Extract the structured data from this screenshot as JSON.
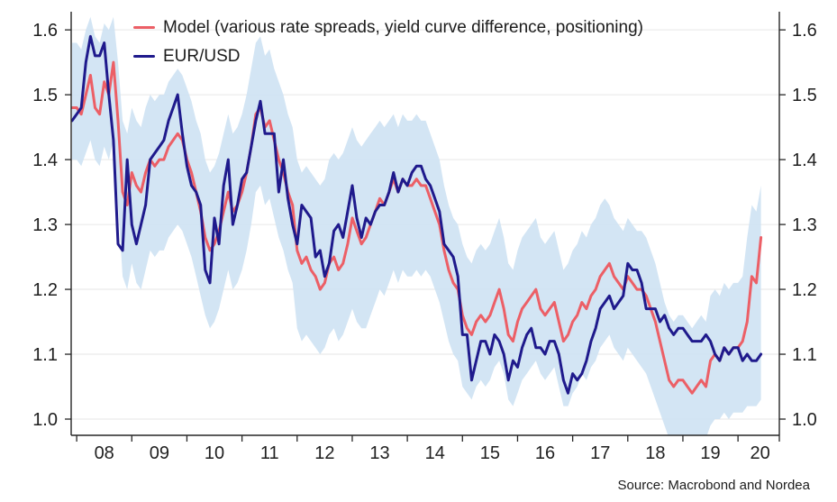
{
  "page": {
    "background": "#ffffff"
  },
  "legend": {
    "model_label": "Model (various rate spreads, yield curve difference, positioning)",
    "eurusd_label": "EUR/USD"
  },
  "source_note": "Source: Macrobond and Nordea",
  "colors": {
    "model_line": "#ec5f66",
    "eurusd_line": "#1f1a8c",
    "band": "#cfe3f3",
    "grid": "#e6e6e6",
    "axis": "#262626",
    "text": "#1f1f1f"
  },
  "chart_data": {
    "type": "line",
    "title": "",
    "x_unit": "year, monthly samples (decimal years)",
    "x_range": [
      2007.9,
      2020.75
    ],
    "x": [
      2007.917,
      2008.0,
      2008.083,
      2008.167,
      2008.25,
      2008.333,
      2008.417,
      2008.5,
      2008.583,
      2008.667,
      2008.75,
      2008.833,
      2008.917,
      2009.0,
      2009.083,
      2009.167,
      2009.25,
      2009.333,
      2009.417,
      2009.5,
      2009.583,
      2009.667,
      2009.75,
      2009.833,
      2009.917,
      2010.0,
      2010.083,
      2010.167,
      2010.25,
      2010.333,
      2010.417,
      2010.5,
      2010.583,
      2010.667,
      2010.75,
      2010.833,
      2010.917,
      2011.0,
      2011.083,
      2011.167,
      2011.25,
      2011.333,
      2011.417,
      2011.5,
      2011.583,
      2011.667,
      2011.75,
      2011.833,
      2011.917,
      2012.0,
      2012.083,
      2012.167,
      2012.25,
      2012.333,
      2012.417,
      2012.5,
      2012.583,
      2012.667,
      2012.75,
      2012.833,
      2012.917,
      2013.0,
      2013.083,
      2013.167,
      2013.25,
      2013.333,
      2013.417,
      2013.5,
      2013.583,
      2013.667,
      2013.75,
      2013.833,
      2013.917,
      2014.0,
      2014.083,
      2014.167,
      2014.25,
      2014.333,
      2014.417,
      2014.5,
      2014.583,
      2014.667,
      2014.75,
      2014.833,
      2014.917,
      2015.0,
      2015.083,
      2015.167,
      2015.25,
      2015.333,
      2015.417,
      2015.5,
      2015.583,
      2015.667,
      2015.75,
      2015.833,
      2015.917,
      2016.0,
      2016.083,
      2016.167,
      2016.25,
      2016.333,
      2016.417,
      2016.5,
      2016.583,
      2016.667,
      2016.75,
      2016.833,
      2016.917,
      2017.0,
      2017.083,
      2017.167,
      2017.25,
      2017.333,
      2017.417,
      2017.5,
      2017.583,
      2017.667,
      2017.75,
      2017.833,
      2017.917,
      2018.0,
      2018.083,
      2018.167,
      2018.25,
      2018.333,
      2018.417,
      2018.5,
      2018.583,
      2018.667,
      2018.75,
      2018.833,
      2018.917,
      2019.0,
      2019.083,
      2019.167,
      2019.25,
      2019.333,
      2019.417,
      2019.5,
      2019.583,
      2019.667,
      2019.75,
      2019.833,
      2019.917,
      2020.0,
      2020.083,
      2020.167,
      2020.25,
      2020.333,
      2020.417
    ],
    "series": [
      {
        "name": "Model (various rate spreads, yield curve difference, positioning)",
        "color": "#ec5f66",
        "values": [
          1.48,
          1.48,
          1.47,
          1.5,
          1.53,
          1.48,
          1.47,
          1.52,
          1.5,
          1.55,
          1.46,
          1.35,
          1.33,
          1.38,
          1.36,
          1.35,
          1.38,
          1.4,
          1.39,
          1.4,
          1.4,
          1.42,
          1.43,
          1.44,
          1.43,
          1.4,
          1.38,
          1.35,
          1.32,
          1.28,
          1.26,
          1.27,
          1.29,
          1.32,
          1.35,
          1.32,
          1.33,
          1.35,
          1.38,
          1.42,
          1.47,
          1.48,
          1.45,
          1.46,
          1.43,
          1.4,
          1.38,
          1.35,
          1.33,
          1.26,
          1.24,
          1.25,
          1.23,
          1.22,
          1.2,
          1.21,
          1.24,
          1.25,
          1.23,
          1.24,
          1.27,
          1.31,
          1.29,
          1.27,
          1.28,
          1.3,
          1.32,
          1.34,
          1.33,
          1.35,
          1.37,
          1.35,
          1.37,
          1.36,
          1.36,
          1.37,
          1.36,
          1.36,
          1.34,
          1.32,
          1.3,
          1.26,
          1.23,
          1.21,
          1.2,
          1.16,
          1.14,
          1.13,
          1.15,
          1.16,
          1.15,
          1.16,
          1.18,
          1.2,
          1.17,
          1.13,
          1.12,
          1.15,
          1.17,
          1.18,
          1.19,
          1.2,
          1.17,
          1.16,
          1.17,
          1.18,
          1.15,
          1.12,
          1.13,
          1.15,
          1.16,
          1.18,
          1.17,
          1.19,
          1.2,
          1.22,
          1.23,
          1.24,
          1.22,
          1.21,
          1.2,
          1.22,
          1.21,
          1.2,
          1.2,
          1.19,
          1.17,
          1.15,
          1.12,
          1.09,
          1.06,
          1.05,
          1.06,
          1.06,
          1.05,
          1.04,
          1.05,
          1.06,
          1.05,
          1.09,
          1.1,
          1.09,
          1.11,
          1.1,
          1.11,
          1.11,
          1.12,
          1.15,
          1.22,
          1.21,
          1.28
        ]
      },
      {
        "name": "EUR/USD",
        "color": "#1f1a8c",
        "values": [
          1.46,
          1.47,
          1.48,
          1.55,
          1.59,
          1.56,
          1.56,
          1.58,
          1.5,
          1.43,
          1.27,
          1.26,
          1.4,
          1.3,
          1.27,
          1.3,
          1.33,
          1.4,
          1.41,
          1.42,
          1.43,
          1.46,
          1.48,
          1.5,
          1.44,
          1.39,
          1.36,
          1.35,
          1.33,
          1.23,
          1.21,
          1.31,
          1.27,
          1.36,
          1.4,
          1.3,
          1.33,
          1.37,
          1.38,
          1.42,
          1.46,
          1.49,
          1.44,
          1.44,
          1.44,
          1.35,
          1.4,
          1.34,
          1.3,
          1.27,
          1.33,
          1.32,
          1.31,
          1.25,
          1.26,
          1.22,
          1.24,
          1.29,
          1.3,
          1.28,
          1.32,
          1.36,
          1.31,
          1.28,
          1.31,
          1.3,
          1.32,
          1.33,
          1.33,
          1.35,
          1.38,
          1.35,
          1.37,
          1.36,
          1.38,
          1.39,
          1.39,
          1.37,
          1.36,
          1.34,
          1.32,
          1.27,
          1.26,
          1.25,
          1.22,
          1.13,
          1.13,
          1.06,
          1.09,
          1.12,
          1.12,
          1.1,
          1.13,
          1.12,
          1.1,
          1.06,
          1.09,
          1.08,
          1.11,
          1.13,
          1.14,
          1.11,
          1.11,
          1.1,
          1.12,
          1.12,
          1.1,
          1.06,
          1.04,
          1.07,
          1.06,
          1.07,
          1.09,
          1.12,
          1.14,
          1.17,
          1.18,
          1.19,
          1.17,
          1.18,
          1.19,
          1.24,
          1.23,
          1.23,
          1.21,
          1.17,
          1.17,
          1.17,
          1.15,
          1.16,
          1.14,
          1.13,
          1.14,
          1.14,
          1.13,
          1.12,
          1.12,
          1.12,
          1.13,
          1.12,
          1.1,
          1.09,
          1.11,
          1.1,
          1.11,
          1.11,
          1.09,
          1.1,
          1.09,
          1.09,
          1.1
        ]
      }
    ],
    "band": {
      "name": "model uncertainty band",
      "color": "#cfe3f3",
      "upper": [
        1.58,
        1.58,
        1.57,
        1.6,
        1.62,
        1.59,
        1.58,
        1.61,
        1.6,
        1.62,
        1.55,
        1.46,
        1.44,
        1.48,
        1.46,
        1.45,
        1.48,
        1.5,
        1.49,
        1.5,
        1.5,
        1.52,
        1.53,
        1.54,
        1.53,
        1.51,
        1.49,
        1.46,
        1.44,
        1.4,
        1.38,
        1.39,
        1.41,
        1.44,
        1.47,
        1.44,
        1.45,
        1.47,
        1.5,
        1.54,
        1.58,
        1.59,
        1.56,
        1.57,
        1.54,
        1.52,
        1.5,
        1.47,
        1.45,
        1.4,
        1.38,
        1.39,
        1.38,
        1.37,
        1.36,
        1.37,
        1.4,
        1.41,
        1.4,
        1.41,
        1.43,
        1.45,
        1.43,
        1.42,
        1.43,
        1.44,
        1.45,
        1.46,
        1.45,
        1.46,
        1.47,
        1.45,
        1.47,
        1.46,
        1.46,
        1.47,
        1.46,
        1.46,
        1.44,
        1.42,
        1.4,
        1.36,
        1.33,
        1.31,
        1.3,
        1.27,
        1.25,
        1.24,
        1.26,
        1.27,
        1.26,
        1.27,
        1.29,
        1.31,
        1.28,
        1.24,
        1.23,
        1.26,
        1.28,
        1.29,
        1.3,
        1.31,
        1.28,
        1.27,
        1.28,
        1.29,
        1.26,
        1.23,
        1.24,
        1.26,
        1.27,
        1.29,
        1.28,
        1.3,
        1.31,
        1.33,
        1.34,
        1.33,
        1.31,
        1.3,
        1.29,
        1.31,
        1.3,
        1.29,
        1.29,
        1.28,
        1.26,
        1.24,
        1.21,
        1.18,
        1.16,
        1.15,
        1.16,
        1.16,
        1.15,
        1.14,
        1.15,
        1.16,
        1.15,
        1.19,
        1.2,
        1.19,
        1.21,
        1.2,
        1.21,
        1.21,
        1.22,
        1.28,
        1.33,
        1.32,
        1.36
      ],
      "lower": [
        1.4,
        1.4,
        1.39,
        1.41,
        1.43,
        1.4,
        1.39,
        1.42,
        1.4,
        1.43,
        1.33,
        1.22,
        1.2,
        1.24,
        1.21,
        1.2,
        1.23,
        1.26,
        1.25,
        1.26,
        1.26,
        1.28,
        1.29,
        1.3,
        1.29,
        1.27,
        1.25,
        1.22,
        1.19,
        1.16,
        1.14,
        1.15,
        1.17,
        1.2,
        1.23,
        1.2,
        1.21,
        1.23,
        1.26,
        1.3,
        1.35,
        1.36,
        1.33,
        1.34,
        1.31,
        1.28,
        1.26,
        1.23,
        1.21,
        1.14,
        1.12,
        1.13,
        1.12,
        1.11,
        1.1,
        1.11,
        1.13,
        1.14,
        1.12,
        1.13,
        1.15,
        1.17,
        1.15,
        1.14,
        1.14,
        1.16,
        1.18,
        1.2,
        1.19,
        1.21,
        1.23,
        1.21,
        1.23,
        1.22,
        1.22,
        1.23,
        1.22,
        1.23,
        1.22,
        1.2,
        1.18,
        1.15,
        1.12,
        1.1,
        1.09,
        1.05,
        1.04,
        1.03,
        1.05,
        1.06,
        1.05,
        1.06,
        1.08,
        1.09,
        1.07,
        1.03,
        1.02,
        1.04,
        1.06,
        1.07,
        1.08,
        1.09,
        1.07,
        1.06,
        1.07,
        1.08,
        1.05,
        1.02,
        1.02,
        1.04,
        1.05,
        1.07,
        1.06,
        1.08,
        1.09,
        1.11,
        1.12,
        1.13,
        1.11,
        1.1,
        1.09,
        1.11,
        1.1,
        1.09,
        1.08,
        1.07,
        1.05,
        1.03,
        1.01,
        0.99,
        0.97,
        0.96,
        0.97,
        0.97,
        0.96,
        0.96,
        0.96,
        0.97,
        0.97,
        0.99,
        1.0,
        1.0,
        1.01,
        1.0,
        1.01,
        1.01,
        1.01,
        1.02,
        1.02,
        1.02,
        1.03
      ]
    },
    "x_axis": {
      "tick_positions": [
        2008,
        2009,
        2010,
        2011,
        2012,
        2013,
        2014,
        2015,
        2016,
        2017,
        2018,
        2019,
        2020,
        2020.75
      ],
      "tick_labels": [
        "08",
        "09",
        "10",
        "11",
        "12",
        "13",
        "14",
        "15",
        "16",
        "17",
        "18",
        "19",
        "20"
      ],
      "label_positions": [
        2008.5,
        2009.5,
        2010.5,
        2011.5,
        2012.5,
        2013.5,
        2014.5,
        2015.5,
        2016.5,
        2017.5,
        2018.5,
        2019.5,
        2020.4
      ]
    },
    "y_axis": {
      "ticks": [
        1.0,
        1.1,
        1.2,
        1.3,
        1.4,
        1.5,
        1.6
      ],
      "range": [
        0.975,
        1.628
      ],
      "sides": "both",
      "grid": true
    },
    "legend_position": "top-left-inside"
  }
}
